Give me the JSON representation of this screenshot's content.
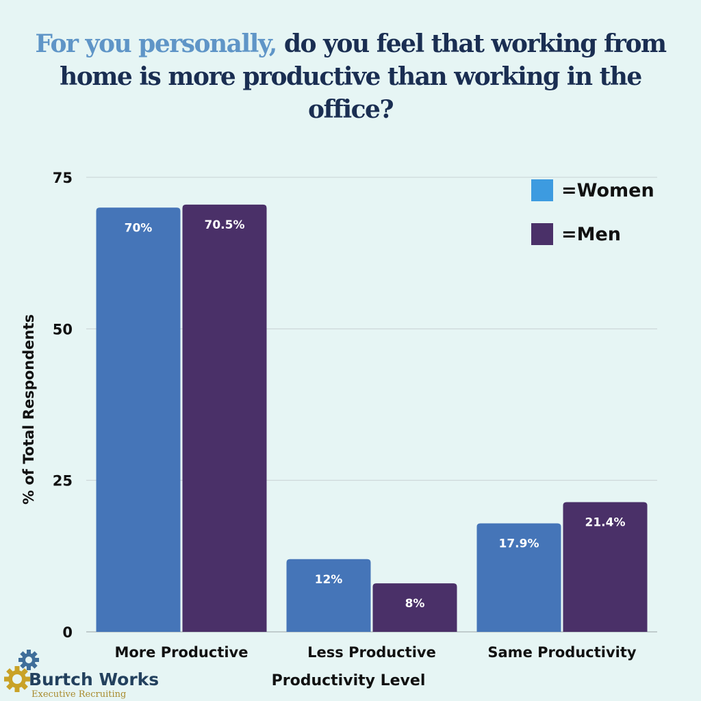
{
  "header": {
    "title_accent": "For you personally,",
    "title_rest": " do you feel that working from home is more productive than working in the office?"
  },
  "colors": {
    "background": "#e6f5f4",
    "title_accent": "#5f95c7",
    "title": "#1a2e52",
    "women_bar": "#4575b8",
    "men_bar": "#4a3068",
    "women_legend": "#3d9be0",
    "men_legend": "#4a3068",
    "grid": "#c8d2d4"
  },
  "legend": {
    "women_label": "=Women",
    "men_label": "=Men"
  },
  "logo": {
    "name": "Burtch Works",
    "tagline": "Executive Recruiting",
    "icon": "gear-icon"
  },
  "chart_data": {
    "type": "bar",
    "title": "For you personally, do you feel that working from home is more productive than working in the office?",
    "xlabel": "Productivity Level",
    "ylabel": "% of Total Respondents",
    "categories": [
      "More Productive",
      "Less Productive",
      "Same Productivity"
    ],
    "series": [
      {
        "name": "=Women",
        "values": [
          70,
          12,
          17.9
        ],
        "labels": [
          "70%",
          "12%",
          "17.9%"
        ]
      },
      {
        "name": "=Men",
        "values": [
          70.5,
          8,
          21.4
        ],
        "labels": [
          "70.5%",
          "8%",
          "21.4%"
        ]
      }
    ],
    "yticks": [
      0,
      25,
      50,
      75
    ],
    "ylim": [
      0,
      75
    ],
    "grid": true,
    "legend_position": "top-right"
  }
}
